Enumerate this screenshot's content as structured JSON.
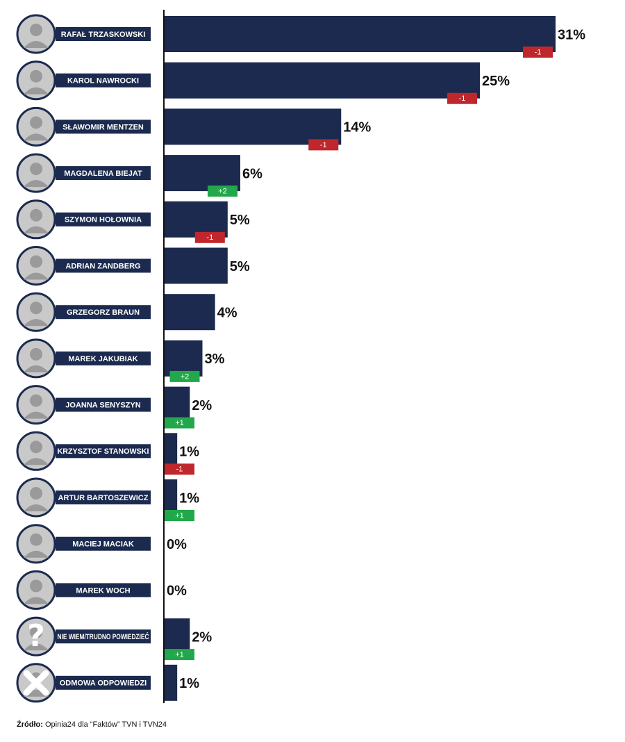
{
  "chart_data": {
    "type": "bar",
    "orientation": "horizontal",
    "categories": [
      "RAFAŁ TRZASKOWSKI",
      "KAROL NAWROCKI",
      "SŁAWOMIR MENTZEN",
      "MAGDALENA BIEJAT",
      "SZYMON HOŁOWNIA",
      "ADRIAN ZANDBERG",
      "GRZEGORZ BRAUN",
      "MAREK JAKUBIAK",
      "JOANNA SENYSZYN",
      "KRZYSZTOF STANOWSKI",
      "ARTUR BARTOSZEWICZ",
      "MACIEJ MACIAK",
      "MAREK WOCH",
      "NIE WIEM/TRUDNO POWIEDZIEĆ",
      "ODMOWA ODPOWIEDZI"
    ],
    "values": [
      31,
      25,
      14,
      6,
      5,
      5,
      4,
      3,
      2,
      1,
      1,
      0,
      0,
      2,
      1
    ],
    "value_labels": [
      "31%",
      "25%",
      "14%",
      "6%",
      "5%",
      "5%",
      "4%",
      "3%",
      "2%",
      "1%",
      "1%",
      "0%",
      "0%",
      "2%",
      "1%"
    ],
    "color": "#1b2a4e",
    "changes": {
      "values": [
        -1,
        -1,
        -1,
        2,
        -1,
        null,
        null,
        2,
        1,
        -1,
        1,
        null,
        null,
        1,
        null
      ],
      "value_labels": [
        "-1",
        "-1",
        "-1",
        "+2",
        "-1",
        null,
        null,
        "+2",
        "+1",
        "-1",
        "+1",
        null,
        null,
        "+1",
        null
      ],
      "colors": {
        "up": "#22a84a",
        "down": "#c0272d"
      }
    },
    "xlim": [
      0,
      31
    ],
    "source_label": "Źródło:",
    "source_text": "Opinia24 dla “Faktów” TVN i TVN24"
  }
}
